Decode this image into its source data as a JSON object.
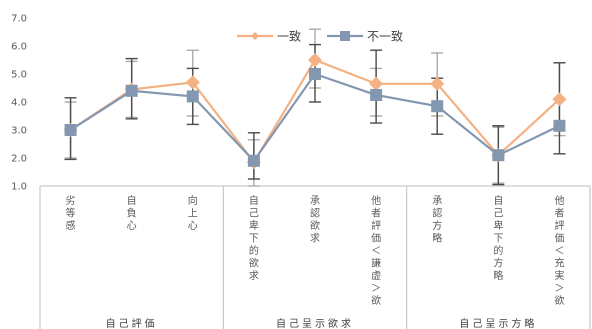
{
  "chart_data": {
    "type": "line",
    "title": "",
    "xlabel": "",
    "ylabel": "",
    "ylim": [
      1.0,
      7.0
    ],
    "yticks": [
      "1.0",
      "2.0",
      "3.0",
      "4.0",
      "5.0",
      "6.0",
      "7.0"
    ],
    "grid": false,
    "legend_position": "top-right",
    "categories": [
      "劣等感",
      "自負心",
      "向上心",
      "自己卑下的欲求",
      "承認欲求",
      "他者評価＜謙虚＞欲",
      "承認方略",
      "自己卑下的方略",
      "他者評価＜充実＞欲"
    ],
    "groups": [
      {
        "label": "自己評価",
        "start": 0,
        "end": 2
      },
      {
        "label": "自己呈示欲求",
        "start": 3,
        "end": 5
      },
      {
        "label": "自己呈示方略",
        "start": 6,
        "end": 8
      }
    ],
    "series": [
      {
        "name": "一致",
        "color": "#F4B183",
        "marker": "diamond",
        "values": [
          3.0,
          4.45,
          4.7,
          1.85,
          5.5,
          4.65,
          4.65,
          2.1,
          4.1
        ],
        "error_low": [
          2.0,
          3.45,
          3.5,
          1.0,
          4.5,
          3.5,
          3.5,
          1.1,
          2.8
        ],
        "error_high": [
          4.0,
          5.45,
          5.85,
          2.65,
          6.6,
          5.2,
          5.75,
          3.1,
          5.4
        ]
      },
      {
        "name": "不一致",
        "color": "#8497B0",
        "marker": "square",
        "values": [
          3.0,
          4.4,
          4.2,
          1.9,
          5.0,
          4.25,
          3.85,
          2.1,
          3.15
        ],
        "error_low": [
          1.95,
          3.4,
          3.2,
          1.25,
          4.0,
          3.25,
          2.85,
          1.05,
          2.15
        ],
        "error_high": [
          4.15,
          5.55,
          5.2,
          2.9,
          6.05,
          5.85,
          4.85,
          3.15,
          5.4
        ]
      }
    ]
  }
}
